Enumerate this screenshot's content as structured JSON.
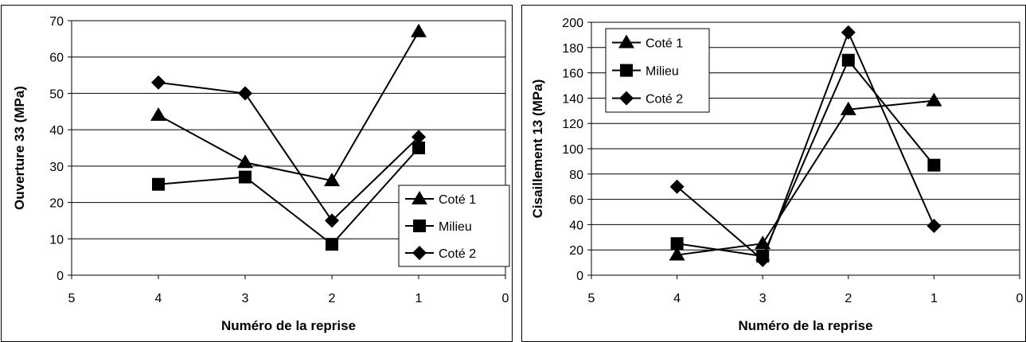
{
  "chart_data": [
    {
      "type": "line",
      "title": "",
      "xlabel": "Numéro de la reprise",
      "ylabel": "Ouverture 33 (MPa)",
      "xlim": [
        5,
        0
      ],
      "ylim": [
        0,
        70
      ],
      "x_ticks": [
        "5",
        "4",
        "3",
        "2",
        "1",
        "0"
      ],
      "y_ticks": [
        "0",
        "10",
        "20",
        "30",
        "40",
        "50",
        "60",
        "70"
      ],
      "grid": true,
      "legend_position": "bottom-right",
      "x": [
        4,
        3,
        2,
        1
      ],
      "series": [
        {
          "name": "Coté 1",
          "marker": "triangle",
          "values": [
            44,
            31,
            26,
            67
          ]
        },
        {
          "name": "Milieu",
          "marker": "square",
          "values": [
            25,
            27,
            8.5,
            35
          ]
        },
        {
          "name": "Coté 2",
          "marker": "diamond",
          "values": [
            53,
            50,
            15,
            38
          ]
        }
      ]
    },
    {
      "type": "line",
      "title": "",
      "xlabel": "Numéro de la reprise",
      "ylabel": "Cisaillement 13 (MPa)",
      "xlim": [
        5,
        0
      ],
      "ylim": [
        0,
        200
      ],
      "x_ticks": [
        "5",
        "4",
        "3",
        "2",
        "1",
        "0"
      ],
      "y_ticks": [
        "0",
        "20",
        "40",
        "60",
        "80",
        "100",
        "120",
        "140",
        "160",
        "180",
        "200"
      ],
      "grid": true,
      "legend_position": "top-left",
      "x": [
        4,
        3,
        2,
        1
      ],
      "series": [
        {
          "name": "Coté 1",
          "marker": "triangle",
          "values": [
            16,
            25,
            131,
            138
          ]
        },
        {
          "name": "Milieu",
          "marker": "square",
          "values": [
            25,
            15,
            170,
            87
          ]
        },
        {
          "name": "Coté 2",
          "marker": "diamond",
          "values": [
            70,
            12,
            192,
            39
          ]
        }
      ]
    }
  ],
  "colors": {
    "line": "#000000",
    "grid": "#000000",
    "background": "#ffffff"
  }
}
